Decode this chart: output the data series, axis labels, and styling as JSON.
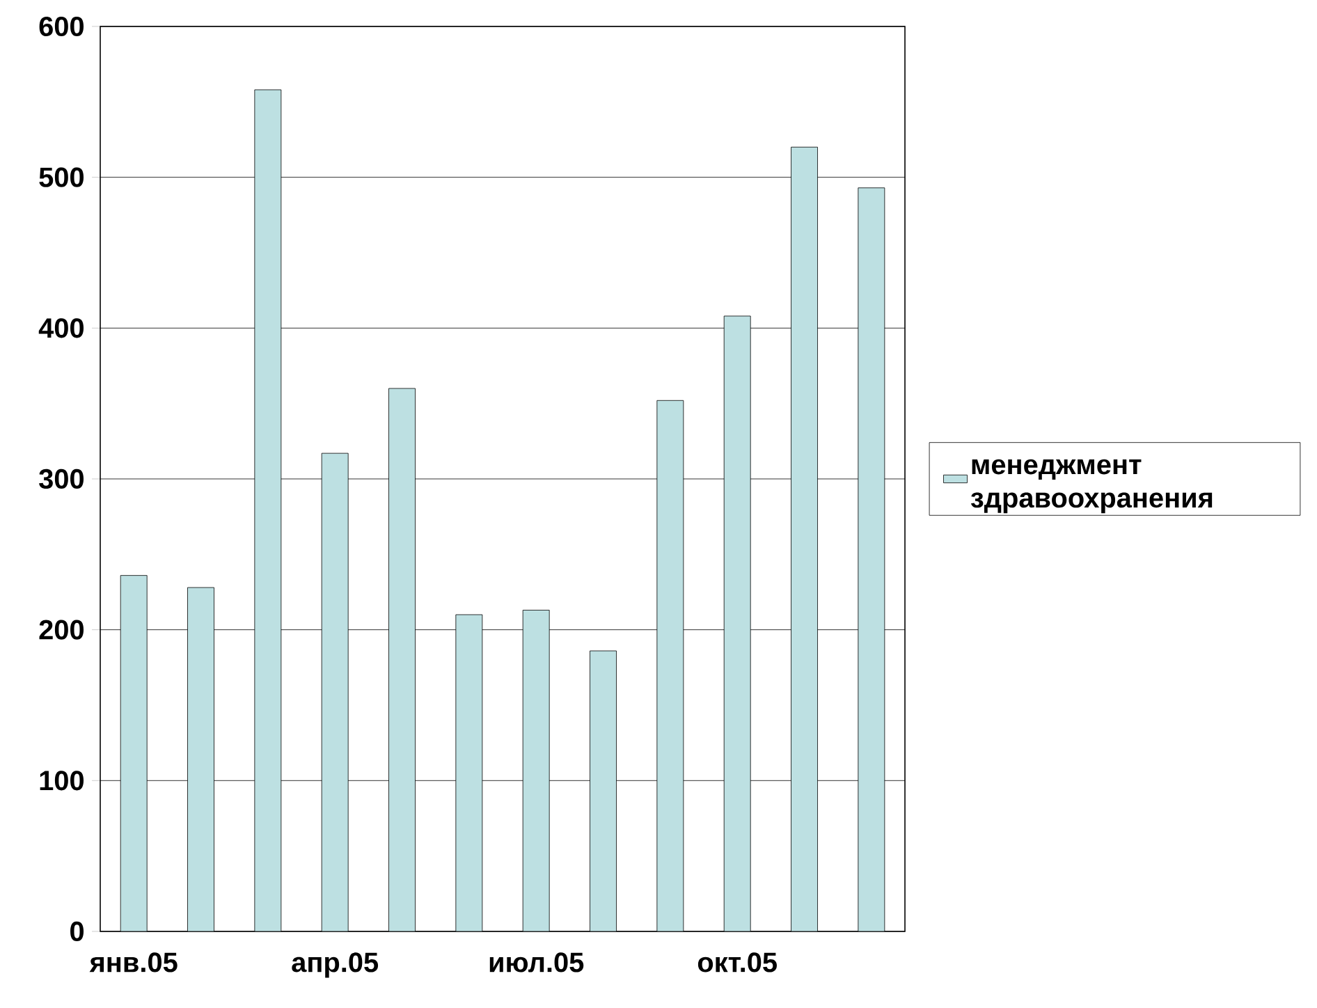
{
  "chart_data": {
    "type": "bar",
    "categories": [
      "янв.05",
      null,
      null,
      "апр.05",
      null,
      null,
      "июл.05",
      null,
      null,
      "окт.05",
      null,
      null
    ],
    "series": [
      {
        "name": "менеджмент здравоохранения",
        "color": "#bde0e2",
        "values": [
          236,
          228,
          558,
          317,
          360,
          210,
          213,
          186,
          352,
          408,
          520,
          493
        ]
      }
    ],
    "ylim": [
      0,
      600
    ],
    "yticks": [
      0,
      100,
      200,
      300,
      400,
      500,
      600
    ],
    "grid": "y",
    "legend": "right"
  }
}
